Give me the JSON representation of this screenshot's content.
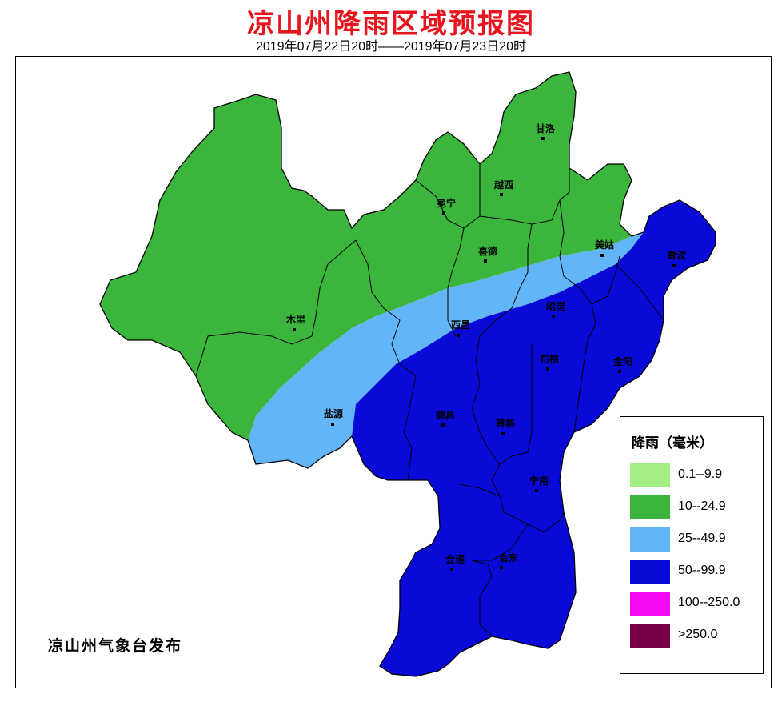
{
  "header": {
    "title": "凉山州降雨区域预报图",
    "subtitle": "2019年07月22日20时——2019年07月23日20时"
  },
  "publisher": "凉山州气象台发布",
  "legend": {
    "title": "降雨（毫米）",
    "items": [
      {
        "label": "0.1--9.9",
        "color": "#a5ee84"
      },
      {
        "label": "10--24.9",
        "color": "#3bb53b"
      },
      {
        "label": "25--49.9",
        "color": "#62b5f6"
      },
      {
        "label": "50--99.9",
        "color": "#0a0ad8"
      },
      {
        "label": "100--250.0",
        "color": "#f20af2"
      },
      {
        "label": ">250.0",
        "color": "#7a0046"
      }
    ]
  },
  "counties": [
    "甘洛",
    "越西",
    "冕宁",
    "美姑",
    "喜德",
    "雷波",
    "木里",
    "西昌",
    "昭觉",
    "布拖",
    "金阳",
    "盐源",
    "德昌",
    "普格",
    "宁南",
    "会理",
    "会东"
  ]
}
